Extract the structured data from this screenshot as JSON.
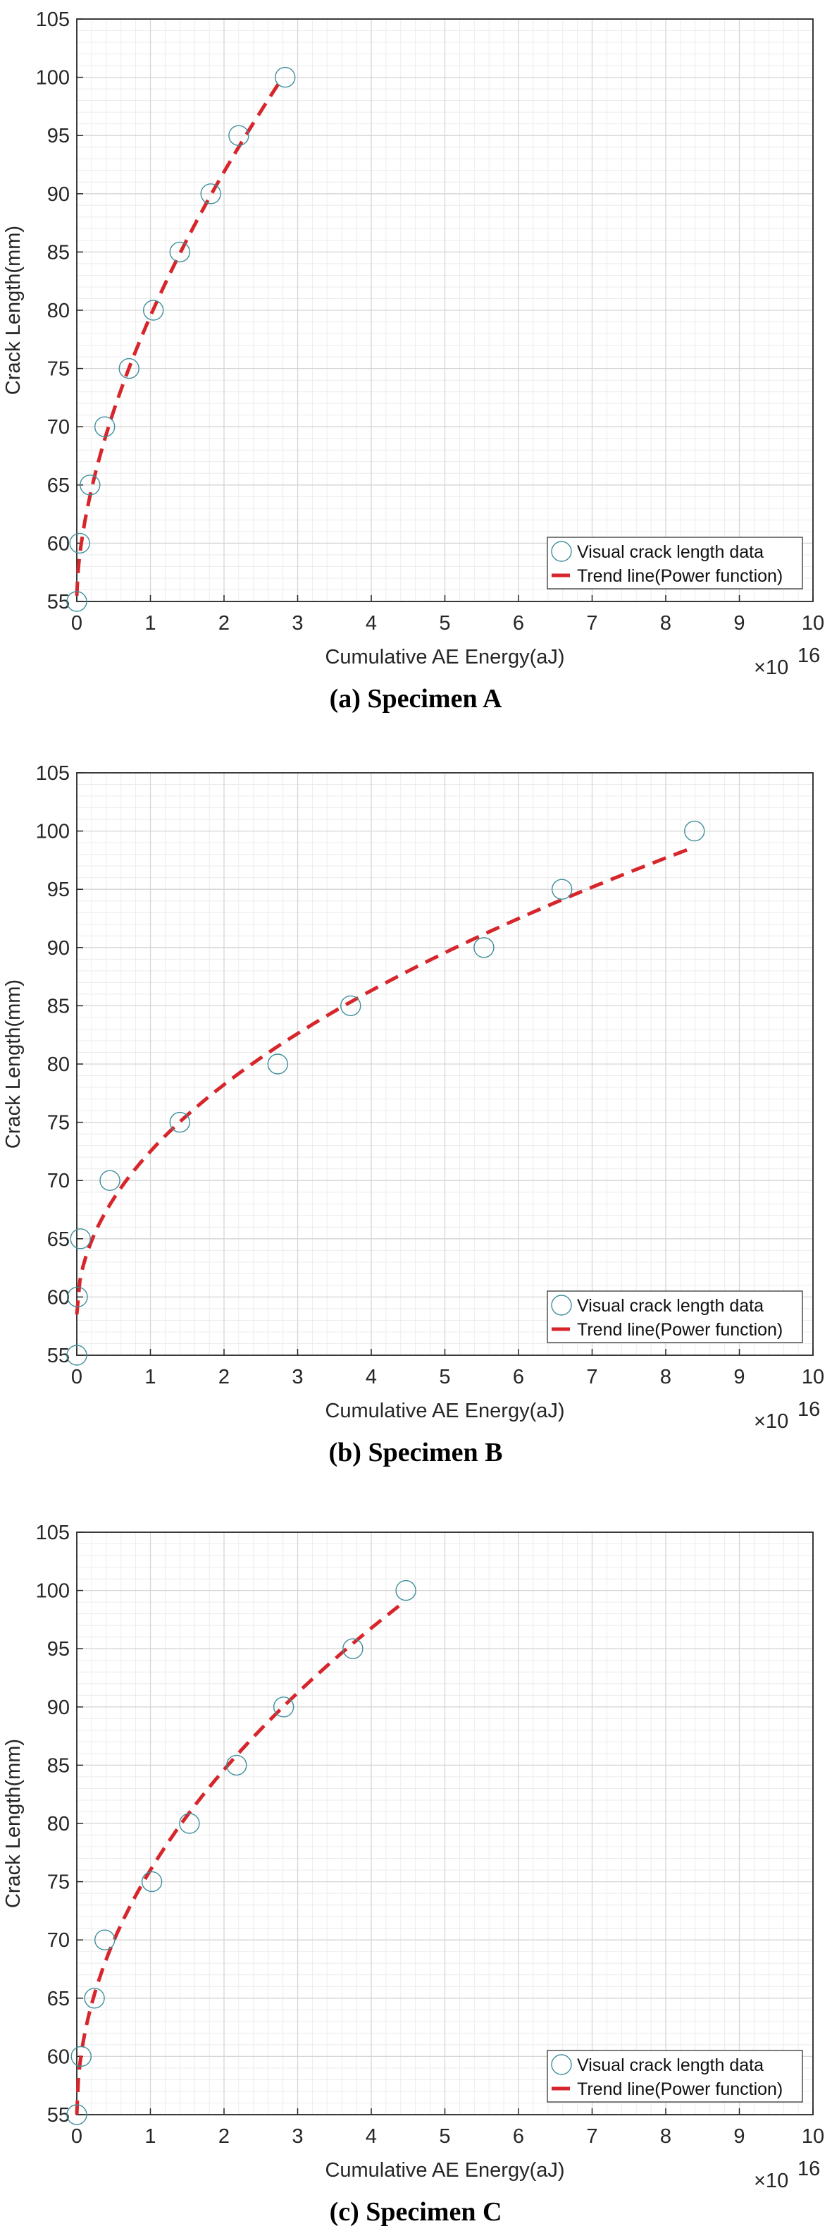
{
  "chart_data": [
    {
      "type": "scatter",
      "caption": "(a) Specimen A",
      "xlabel": "Cumulative AE Energy(aJ)",
      "ylabel": "Crack Length(mm)",
      "x_multiplier": "×10",
      "x_exponent": "16",
      "xlim": [
        0,
        10
      ],
      "ylim": [
        55,
        105
      ],
      "xticks": [
        "0",
        "1",
        "2",
        "3",
        "4",
        "5",
        "6",
        "7",
        "8",
        "9",
        "10"
      ],
      "yticks": [
        "55",
        "60",
        "65",
        "70",
        "75",
        "80",
        "85",
        "90",
        "95",
        "100",
        "105"
      ],
      "grid": true,
      "minor_grid": true,
      "legend_position": "bottom-right",
      "series": [
        {
          "name": "Visual crack length data",
          "kind": "scatter",
          "color": "#3f8f9c",
          "x": [
            0,
            0.04,
            0.18,
            0.38,
            0.71,
            1.04,
            1.4,
            1.82,
            2.2,
            2.83
          ],
          "y": [
            55,
            60,
            65,
            70,
            75,
            80,
            85,
            90,
            95,
            100
          ]
        },
        {
          "name": "Trend line(Power function)",
          "kind": "line",
          "style": "dashed",
          "color": "#d7262b",
          "model": "y = a + b*x^c",
          "a": 55.5,
          "b": 24,
          "c": 0.6,
          "x_range": [
            0,
            2.78
          ]
        }
      ]
    },
    {
      "type": "scatter",
      "caption": "(b) Specimen B",
      "xlabel": "Cumulative AE Energy(aJ)",
      "ylabel": "Crack Length(mm)",
      "x_multiplier": "×10",
      "x_exponent": "16",
      "xlim": [
        0,
        10
      ],
      "ylim": [
        55,
        105
      ],
      "xticks": [
        "0",
        "1",
        "2",
        "3",
        "4",
        "5",
        "6",
        "7",
        "8",
        "9",
        "10"
      ],
      "yticks": [
        "55",
        "60",
        "65",
        "70",
        "75",
        "80",
        "85",
        "90",
        "95",
        "100",
        "105"
      ],
      "grid": true,
      "minor_grid": true,
      "legend_position": "bottom-right",
      "series": [
        {
          "name": "Visual crack length data",
          "kind": "scatter",
          "color": "#3f8f9c",
          "x": [
            0,
            0.01,
            0.05,
            0.45,
            1.4,
            2.73,
            3.72,
            5.53,
            6.59,
            8.39
          ],
          "y": [
            55,
            60,
            65,
            70,
            75,
            80,
            85,
            90,
            95,
            100
          ]
        },
        {
          "name": "Trend line(Power function)",
          "kind": "line",
          "style": "dashed",
          "color": "#d7262b",
          "model": "y = a + b*x^c",
          "a": 58.5,
          "b": 14,
          "c": 0.495,
          "x_range": [
            0,
            8.35
          ]
        }
      ]
    },
    {
      "type": "scatter",
      "caption": "(c) Specimen C",
      "xlabel": "Cumulative AE Energy(aJ)",
      "ylabel": "Crack Length(mm)",
      "x_multiplier": "×10",
      "x_exponent": "16",
      "xlim": [
        0,
        10
      ],
      "ylim": [
        55,
        105
      ],
      "xticks": [
        "0",
        "1",
        "2",
        "3",
        "4",
        "5",
        "6",
        "7",
        "8",
        "9",
        "10"
      ],
      "yticks": [
        "55",
        "60",
        "65",
        "70",
        "75",
        "80",
        "85",
        "90",
        "95",
        "100",
        "105"
      ],
      "grid": true,
      "minor_grid": true,
      "legend_position": "bottom-right",
      "series": [
        {
          "name": "Visual crack length data",
          "kind": "scatter",
          "color": "#3f8f9c",
          "x": [
            0,
            0.06,
            0.24,
            0.38,
            1.02,
            1.53,
            2.17,
            2.81,
            3.75,
            4.47
          ],
          "y": [
            55,
            60,
            65,
            70,
            75,
            80,
            85,
            90,
            95,
            100
          ]
        },
        {
          "name": "Trend line(Power function)",
          "kind": "line",
          "style": "dashed",
          "color": "#d7262b",
          "model": "y = a + b*x^c",
          "a": 55,
          "b": 21,
          "c": 0.496,
          "x_range": [
            0,
            4.45
          ]
        }
      ]
    }
  ]
}
